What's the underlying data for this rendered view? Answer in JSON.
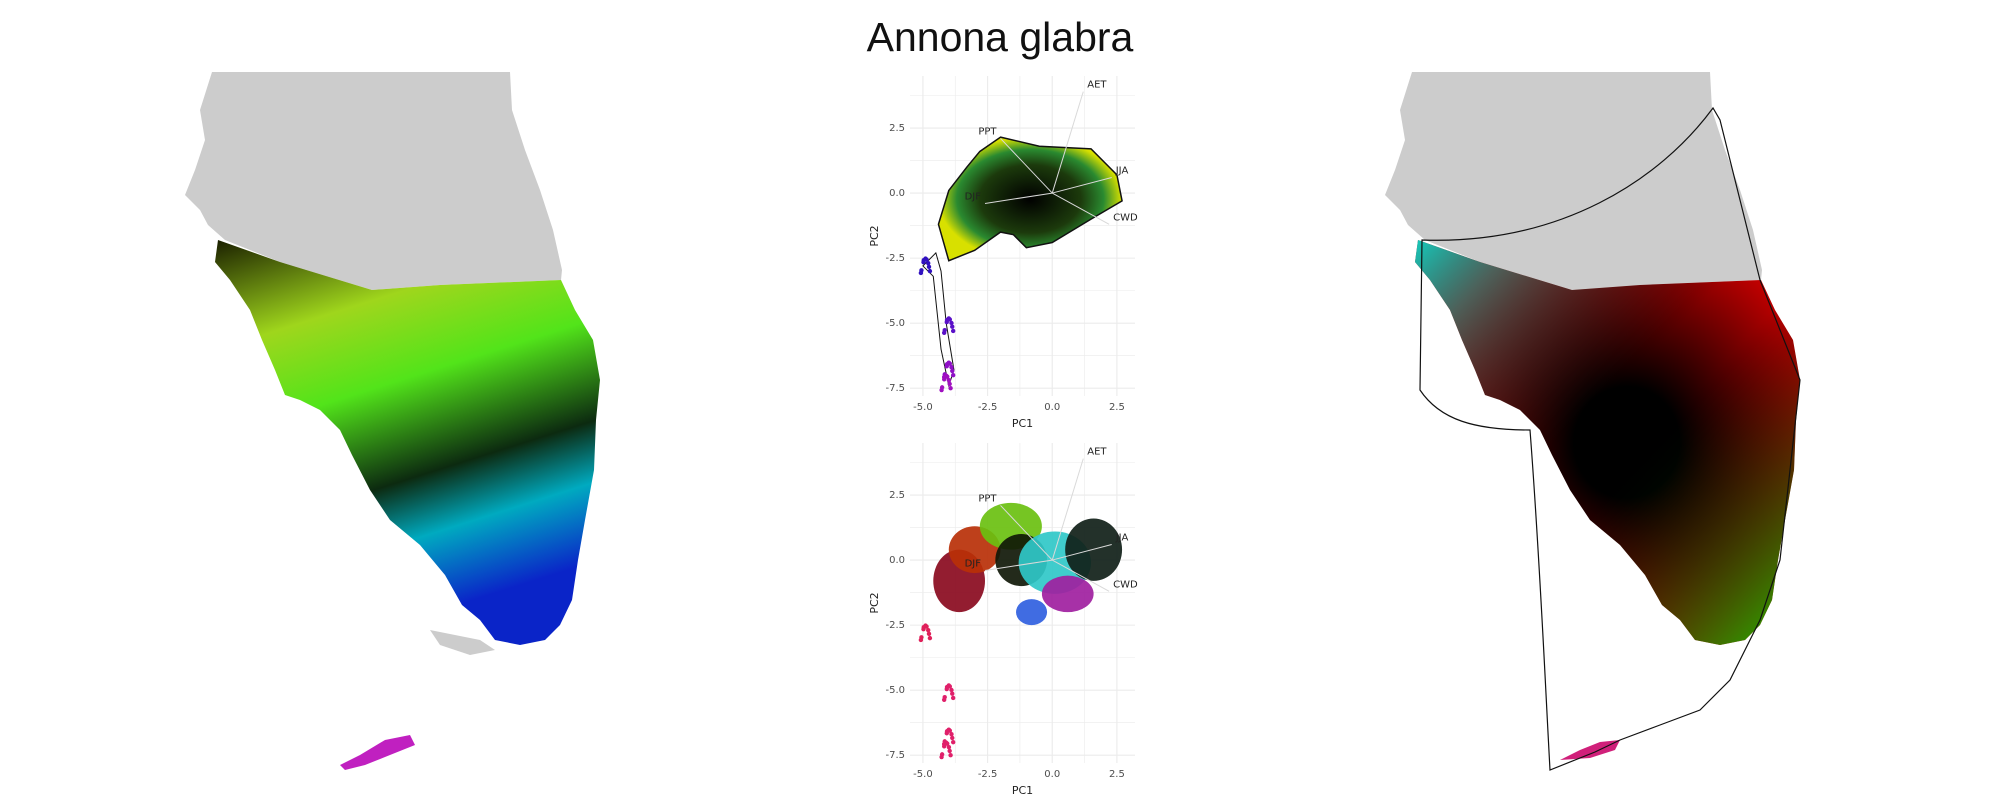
{
  "title": "Annona glabra",
  "colors": {
    "land": "#cccccc",
    "grid": "#ebebeb",
    "vector": "#d9d9d9",
    "hull": "#111111",
    "map_left_gradient": [
      "#1a1f00",
      "#9fd61c",
      "#52e41a",
      "#0c2a10",
      "#00aac0",
      "#0a24c8"
    ],
    "map_right_gradient": [
      "#00e0d0",
      "#000000",
      "#00d800",
      "#e0c800",
      "#cc0000",
      "#b000a0"
    ]
  },
  "chart_data": [
    {
      "type": "scatter",
      "panel": "top",
      "xlabel": "PC1",
      "ylabel": "PC2",
      "xlim": [
        -5.5,
        3.2
      ],
      "ylim": [
        -7.8,
        4.5
      ],
      "xticks": [
        "-5.0",
        "-2.5",
        "0.0",
        "2.5"
      ],
      "xtick_values": [
        -5,
        -2.5,
        0,
        2.5
      ],
      "yticks": [
        "2.5",
        "0.0",
        "-2.5",
        "-5.0",
        "-7.5"
      ],
      "ytick_values": [
        2.5,
        0,
        -2.5,
        -5,
        -7.5
      ],
      "grid": true,
      "vectors": [
        {
          "label": "AET",
          "x": 1.2,
          "y": 3.9
        },
        {
          "label": "PPT",
          "x": -2.0,
          "y": 2.1
        },
        {
          "label": "JJA",
          "x": 2.3,
          "y": 0.6
        },
        {
          "label": "CWD",
          "x": 2.2,
          "y": -1.2
        },
        {
          "label": "DJF",
          "x": -2.6,
          "y": -0.4
        }
      ],
      "hull": [
        [
          -2.0,
          2.15
        ],
        [
          -0.5,
          1.8
        ],
        [
          1.5,
          1.7
        ],
        [
          2.5,
          0.7
        ],
        [
          2.7,
          -0.3
        ],
        [
          1.5,
          -1.0
        ],
        [
          0.0,
          -1.9
        ],
        [
          -1.0,
          -2.1
        ],
        [
          -1.5,
          -1.6
        ],
        [
          -2.0,
          -1.5
        ],
        [
          -3.0,
          -2.2
        ],
        [
          -4.0,
          -2.6
        ],
        [
          -4.4,
          -1.2
        ],
        [
          -4.0,
          0.1
        ],
        [
          -3.3,
          1.0
        ],
        [
          -2.8,
          1.6
        ]
      ],
      "tail_hull": [
        [
          -4.5,
          -2.3
        ],
        [
          -5.0,
          -2.8
        ],
        [
          -4.6,
          -3.2
        ],
        [
          -4.3,
          -6.0
        ],
        [
          -4.0,
          -7.4
        ],
        [
          -3.8,
          -6.8
        ],
        [
          -4.1,
          -5.0
        ],
        [
          -4.3,
          -3.0
        ]
      ],
      "point_clusters": [
        {
          "x": -4.9,
          "y": -2.8,
          "color": "#3010c0"
        },
        {
          "x": -4.0,
          "y": -5.1,
          "color": "#5a10c8"
        },
        {
          "x": -4.0,
          "y": -6.8,
          "color": "#9010c8"
        },
        {
          "x": -4.1,
          "y": -7.3,
          "color": "#a010c0"
        }
      ]
    },
    {
      "type": "scatter",
      "panel": "bottom",
      "xlabel": "PC1",
      "ylabel": "PC2",
      "xlim": [
        -5.5,
        3.2
      ],
      "ylim": [
        -7.8,
        4.5
      ],
      "xticks": [
        "-5.0",
        "-2.5",
        "0.0",
        "2.5"
      ],
      "xtick_values": [
        -5,
        -2.5,
        0,
        2.5
      ],
      "yticks": [
        "2.5",
        "0.0",
        "-2.5",
        "-5.0",
        "-7.5"
      ],
      "ytick_values": [
        2.5,
        0,
        -2.5,
        -5,
        -7.5
      ],
      "grid": true,
      "vectors": [
        {
          "label": "AET",
          "x": 1.2,
          "y": 3.9
        },
        {
          "label": "PPT",
          "x": -2.0,
          "y": 2.1
        },
        {
          "label": "JJA",
          "x": 2.3,
          "y": 0.6
        },
        {
          "label": "CWD",
          "x": 2.2,
          "y": -1.2
        },
        {
          "label": "DJF",
          "x": -2.6,
          "y": -0.4
        }
      ],
      "blobs": [
        {
          "x": -3.6,
          "y": -0.8,
          "rx": 1.0,
          "ry": 1.2,
          "color": "#8a0a1e"
        },
        {
          "x": -3.0,
          "y": 0.4,
          "rx": 1.0,
          "ry": 0.9,
          "color": "#b83008"
        },
        {
          "x": -1.6,
          "y": 1.3,
          "rx": 1.2,
          "ry": 0.9,
          "color": "#6ac010"
        },
        {
          "x": -1.2,
          "y": 0.0,
          "rx": 1.0,
          "ry": 1.0,
          "color": "#101808"
        },
        {
          "x": 0.1,
          "y": -0.1,
          "rx": 1.4,
          "ry": 1.2,
          "color": "#30c8c8"
        },
        {
          "x": 0.6,
          "y": -1.3,
          "rx": 1.0,
          "ry": 0.7,
          "color": "#a020a0"
        },
        {
          "x": 1.6,
          "y": 0.4,
          "rx": 1.1,
          "ry": 1.2,
          "color": "#102018"
        },
        {
          "x": -0.8,
          "y": -2.0,
          "rx": 0.6,
          "ry": 0.5,
          "color": "#3060e0"
        }
      ],
      "point_clusters": [
        {
          "x": -4.9,
          "y": -2.8,
          "color": "#e0205a"
        },
        {
          "x": -4.0,
          "y": -5.1,
          "color": "#e0206a"
        },
        {
          "x": -4.0,
          "y": -6.8,
          "color": "#e0206a"
        },
        {
          "x": -4.1,
          "y": -7.3,
          "color": "#e0206a"
        }
      ]
    }
  ]
}
